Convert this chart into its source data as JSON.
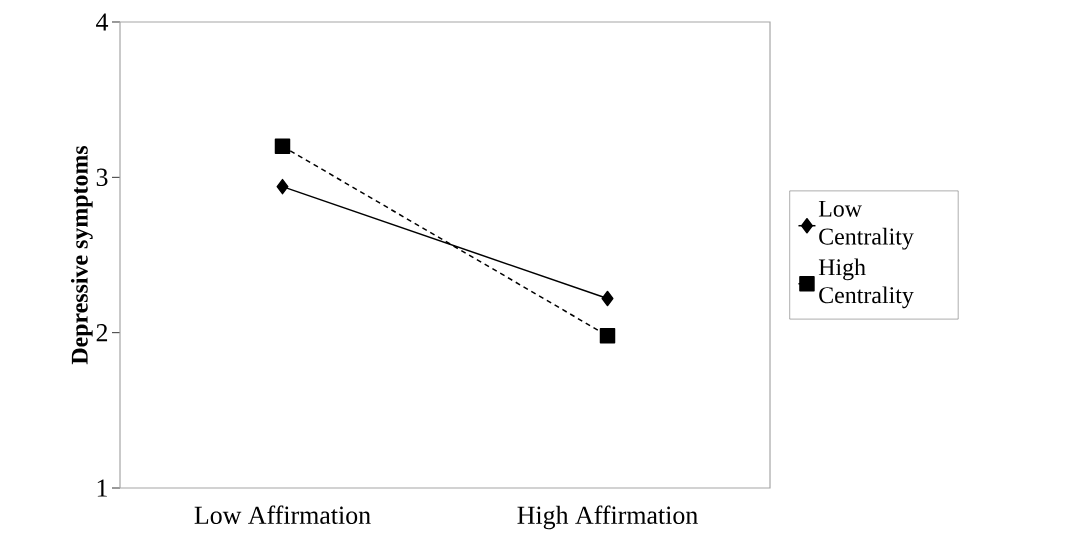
{
  "chart_data": {
    "type": "line",
    "ylabel": "Depressive symptoms",
    "categories": [
      "Low Affirmation",
      "High Affirmation"
    ],
    "series": [
      {
        "name": "Low Centrality",
        "color": "#000000",
        "values": [
          2.94,
          2.22
        ],
        "marker": "diamond",
        "line_style": "solid"
      },
      {
        "name": "High Centrality",
        "color": "#000000",
        "values": [
          3.2,
          1.98
        ],
        "marker": "square",
        "line_style": "dashed"
      }
    ],
    "ylim": [
      1,
      4
    ],
    "yticks": [
      1,
      2,
      3,
      4
    ],
    "grid": false,
    "legend": "right"
  }
}
